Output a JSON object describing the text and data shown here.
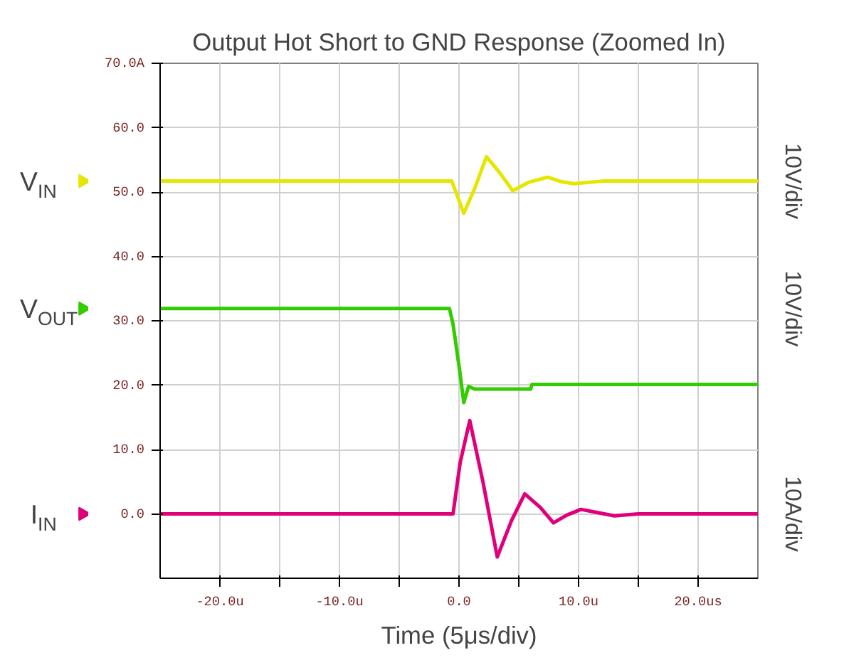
{
  "chart_data": {
    "type": "line",
    "title": "Output Hot Short to GND Response (Zoomed In)",
    "xlabel": "Time (5μs/div)",
    "xlim": [
      -25,
      25
    ],
    "ylim": [
      -10,
      70
    ],
    "xticks": [
      {
        "value": -20,
        "label": "-20.0u"
      },
      {
        "value": -15,
        "label": null
      },
      {
        "value": -10,
        "label": "-10.0u"
      },
      {
        "value": -5,
        "label": null
      },
      {
        "value": 0,
        "label": "0.0"
      },
      {
        "value": 5,
        "label": null
      },
      {
        "value": 10,
        "label": "10.0u"
      },
      {
        "value": 15,
        "label": null
      },
      {
        "value": 20,
        "label": "20.0us"
      }
    ],
    "yticks": [
      {
        "value": 0,
        "label": "0.0"
      },
      {
        "value": 10,
        "label": "10.0"
      },
      {
        "value": 20,
        "label": "20.0"
      },
      {
        "value": 30,
        "label": "30.0"
      },
      {
        "value": 40,
        "label": "40.0"
      },
      {
        "value": 50,
        "label": "50.0"
      },
      {
        "value": 60,
        "label": "60.0"
      },
      {
        "value": 70,
        "label": "70.0A"
      }
    ],
    "grid": true,
    "line_style": "solid",
    "legend": "left",
    "series": [
      {
        "name": "V$_{IN}$",
        "color": "#e6e600",
        "x": [
          -25,
          -0.6,
          0.4,
          1.3,
          2.3,
          3.4,
          4.5,
          5.8,
          7.4,
          8.6,
          9.6,
          12,
          25
        ],
        "values": [
          51.7,
          51.7,
          46.7,
          50.5,
          55.5,
          53.0,
          50.2,
          51.5,
          52.3,
          51.6,
          51.3,
          51.7,
          51.7
        ]
      },
      {
        "name": "V$_{OUT}$",
        "color": "#33cc00",
        "x": [
          -25,
          -0.8,
          -0.5,
          0.0,
          0.4,
          0.8,
          1.3,
          6.0,
          6.1,
          25
        ],
        "values": [
          31.9,
          31.9,
          29.5,
          23.0,
          17.3,
          19.8,
          19.4,
          19.4,
          20.1,
          20.1
        ]
      },
      {
        "name": "I$_{IN}$",
        "color": "#e0007a",
        "x": [
          -25,
          -0.5,
          0.1,
          0.9,
          2.0,
          3.2,
          4.4,
          5.5,
          6.8,
          7.9,
          9.0,
          10.2,
          11.6,
          13.0,
          15,
          25
        ],
        "values": [
          0,
          0,
          8.0,
          14.5,
          5.0,
          -6.7,
          -1.0,
          3.1,
          1.0,
          -1.4,
          -0.2,
          0.7,
          0.2,
          -0.3,
          0,
          0
        ]
      }
    ],
    "annotations": [
      "10V/div",
      "10V/div",
      "10A/div"
    ]
  }
}
